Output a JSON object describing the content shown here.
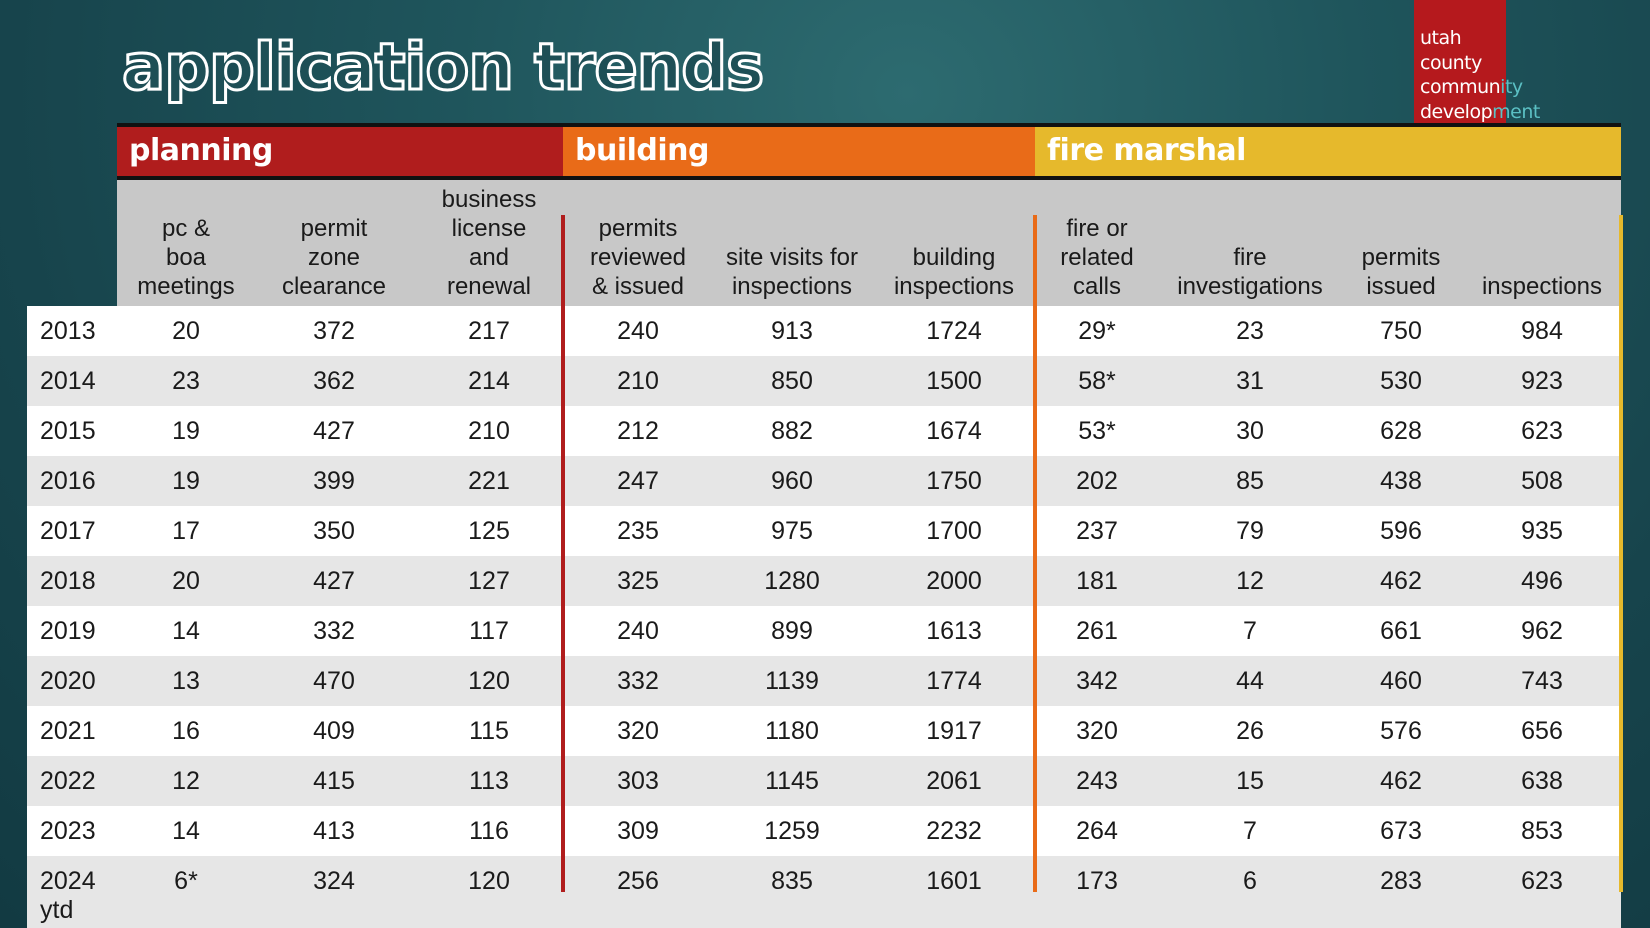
{
  "title": "application trends",
  "logo": {
    "line1": "utah",
    "line2": "county",
    "line3a": "commun",
    "line3b": "ity",
    "line4a": "develop",
    "line4b": "ment"
  },
  "categories": {
    "planning": "planning",
    "building": "building",
    "fire": "fire marshal"
  },
  "colors": {
    "planning": "#b01d1d",
    "building": "#e96b18",
    "fire": "#e6b92c",
    "logo": "#b5191d"
  },
  "headers": [
    [
      "pc &",
      "boa",
      "meetings"
    ],
    [
      "permit",
      "zone",
      "clearance"
    ],
    [
      "business",
      "license",
      "and",
      "renewal"
    ],
    [
      "permits",
      "reviewed",
      "& issued"
    ],
    [
      "site visits for",
      "inspections"
    ],
    [
      "building",
      "inspections"
    ],
    [
      "fire or",
      "related",
      "calls"
    ],
    [
      "fire",
      "investigations"
    ],
    [
      "permits",
      "issued"
    ],
    [
      "inspections"
    ]
  ],
  "rows": [
    [
      "2013",
      "20",
      "372",
      "217",
      "240",
      "913",
      "1724",
      "29*",
      "23",
      "750",
      "984"
    ],
    [
      "2014",
      "23",
      "362",
      "214",
      "210",
      "850",
      "1500",
      "58*",
      "31",
      "530",
      "923"
    ],
    [
      "2015",
      "19",
      "427",
      "210",
      "212",
      "882",
      "1674",
      "53*",
      "30",
      "628",
      "623"
    ],
    [
      "2016",
      "19",
      "399",
      "221",
      "247",
      "960",
      "1750",
      "202",
      "85",
      "438",
      "508"
    ],
    [
      "2017",
      "17",
      "350",
      "125",
      "235",
      "975",
      "1700",
      "237",
      "79",
      "596",
      "935"
    ],
    [
      "2018",
      "20",
      "427",
      "127",
      "325",
      "1280",
      "2000",
      "181",
      "12",
      "462",
      "496"
    ],
    [
      "2019",
      "14",
      "332",
      "117",
      "240",
      "899",
      "1613",
      "261",
      "7",
      "661",
      "962"
    ],
    [
      "2020",
      "13",
      "470",
      "120",
      "332",
      "1139",
      "1774",
      "342",
      "44",
      "460",
      "743"
    ],
    [
      "2021",
      "16",
      "409",
      "115",
      "320",
      "1180",
      "1917",
      "320",
      "26",
      "576",
      "656"
    ],
    [
      "2022",
      "12",
      "415",
      "113",
      "303",
      "1145",
      "2061",
      "243",
      "15",
      "462",
      "638"
    ],
    [
      "2023",
      "14",
      "413",
      "116",
      "309",
      "1259",
      "2232",
      "264",
      "7",
      "673",
      "853"
    ],
    [
      "2024",
      "6*",
      "324",
      "120",
      "256",
      "835",
      "1601",
      "173",
      "6",
      "283",
      "623"
    ]
  ],
  "last_row_suffix": "ytd"
}
